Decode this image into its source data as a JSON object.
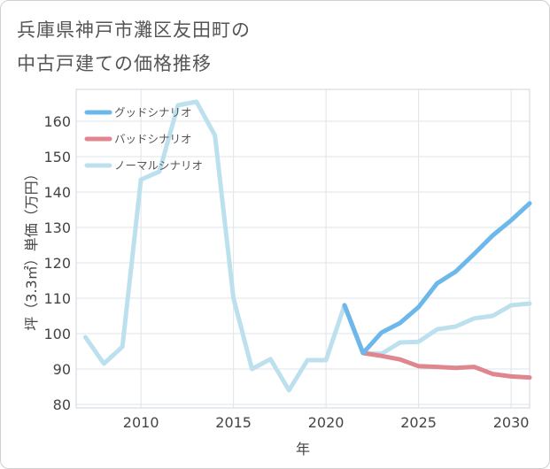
{
  "chart_data": {
    "type": "line",
    "title_lines": [
      "兵庫県神戸市灘区友田町の",
      "中古戸建ての価格推移"
    ],
    "xlabel": "年",
    "ylabel": "坪（3.3㎡）単価（万円）",
    "xlim": [
      2006.5,
      2031
    ],
    "ylim": [
      79,
      169
    ],
    "x_ticks": [
      2010,
      2015,
      2020,
      2025,
      2030
    ],
    "y_ticks": [
      80,
      90,
      100,
      110,
      120,
      130,
      140,
      150,
      160
    ],
    "grid": true,
    "legend_position": "top-left",
    "series": [
      {
        "name": "グッドシナリオ",
        "color": "#6cb8ea",
        "x": [
          2021,
          2022,
          2023,
          2024,
          2025,
          2026,
          2027,
          2028,
          2029,
          2030,
          2031
        ],
        "y": [
          108,
          94.5,
          100.3,
          103,
          107.5,
          114.2,
          117.5,
          122.5,
          127.7,
          132,
          136.8
        ]
      },
      {
        "name": "バッドシナリオ",
        "color": "#e0868e",
        "x": [
          2021,
          2022,
          2023,
          2024,
          2025,
          2026,
          2027,
          2028,
          2029,
          2030,
          2031
        ],
        "y": [
          108,
          94.5,
          93.7,
          92.7,
          90.8,
          90.6,
          90.3,
          90.6,
          88.6,
          87.9,
          87.6
        ]
      },
      {
        "name": "ノーマルシナリオ",
        "color": "#bde0ee",
        "x": [
          2007,
          2008,
          2009,
          2010,
          2011,
          2012,
          2013,
          2014,
          2015,
          2016,
          2017,
          2018,
          2019,
          2020,
          2021,
          2022,
          2023,
          2024,
          2025,
          2026,
          2027,
          2028,
          2029,
          2030,
          2031
        ],
        "y": [
          99,
          91.5,
          96.3,
          143.5,
          145.8,
          164.5,
          165.5,
          156,
          110,
          90,
          92.8,
          84,
          92.5,
          92.5,
          108,
          94.5,
          94.3,
          97.5,
          97.7,
          101.2,
          102,
          104.3,
          105,
          108,
          108.5
        ]
      }
    ]
  }
}
